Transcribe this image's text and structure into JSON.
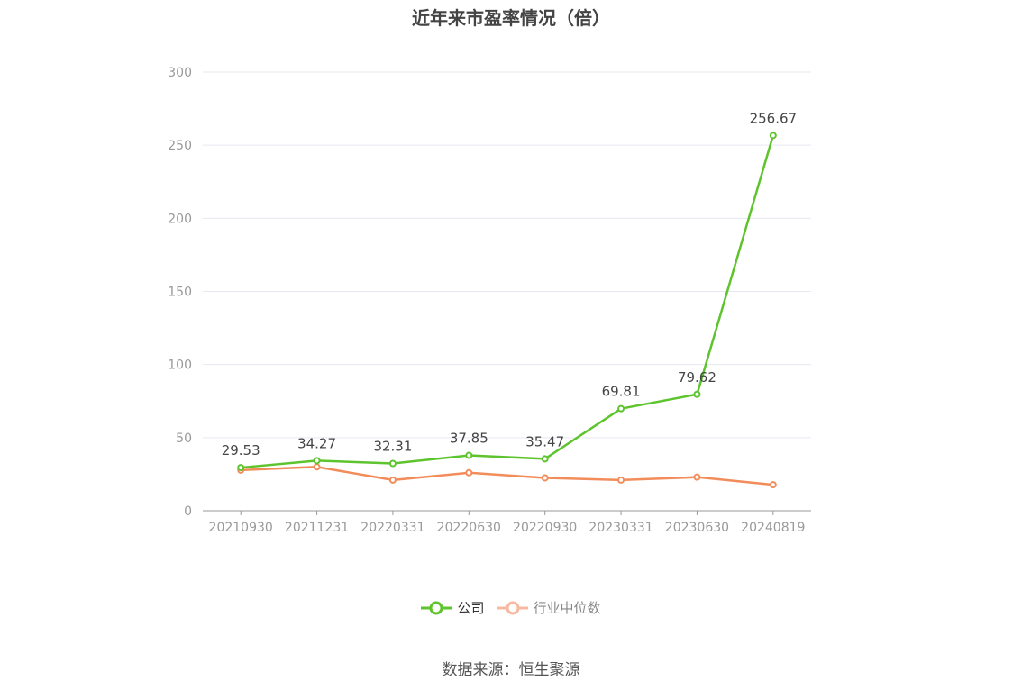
{
  "title": "近年来市盈率情况（倍）",
  "source": "数据来源：恒生聚源",
  "colors": {
    "company": "#5ec42e",
    "industry": "#f28c5a",
    "industry_legend": "#f7b9a0",
    "grid": "#e6e8f0",
    "axis": "#999999"
  },
  "chart_data": {
    "type": "line",
    "title": "近年来市盈率情况（倍）",
    "categories": [
      "20210930",
      "20211231",
      "20220331",
      "20220630",
      "20220930",
      "20230331",
      "20230630",
      "20240819"
    ],
    "ylim": [
      0,
      300
    ],
    "yticks": [
      0,
      50,
      100,
      150,
      200,
      250,
      300
    ],
    "grid": true,
    "legend": "bottom",
    "series": [
      {
        "name": "公司",
        "values": [
          29.53,
          34.27,
          32.31,
          37.85,
          35.47,
          69.81,
          79.62,
          256.67
        ],
        "labels": [
          "29.53",
          "34.27",
          "32.31",
          "37.85",
          "35.47",
          "69.81",
          "79.62",
          "256.67"
        ]
      },
      {
        "name": "行业中位数",
        "values": [
          27.8,
          30.0,
          21.0,
          26.0,
          22.5,
          21.0,
          23.0,
          17.8
        ]
      }
    ]
  }
}
